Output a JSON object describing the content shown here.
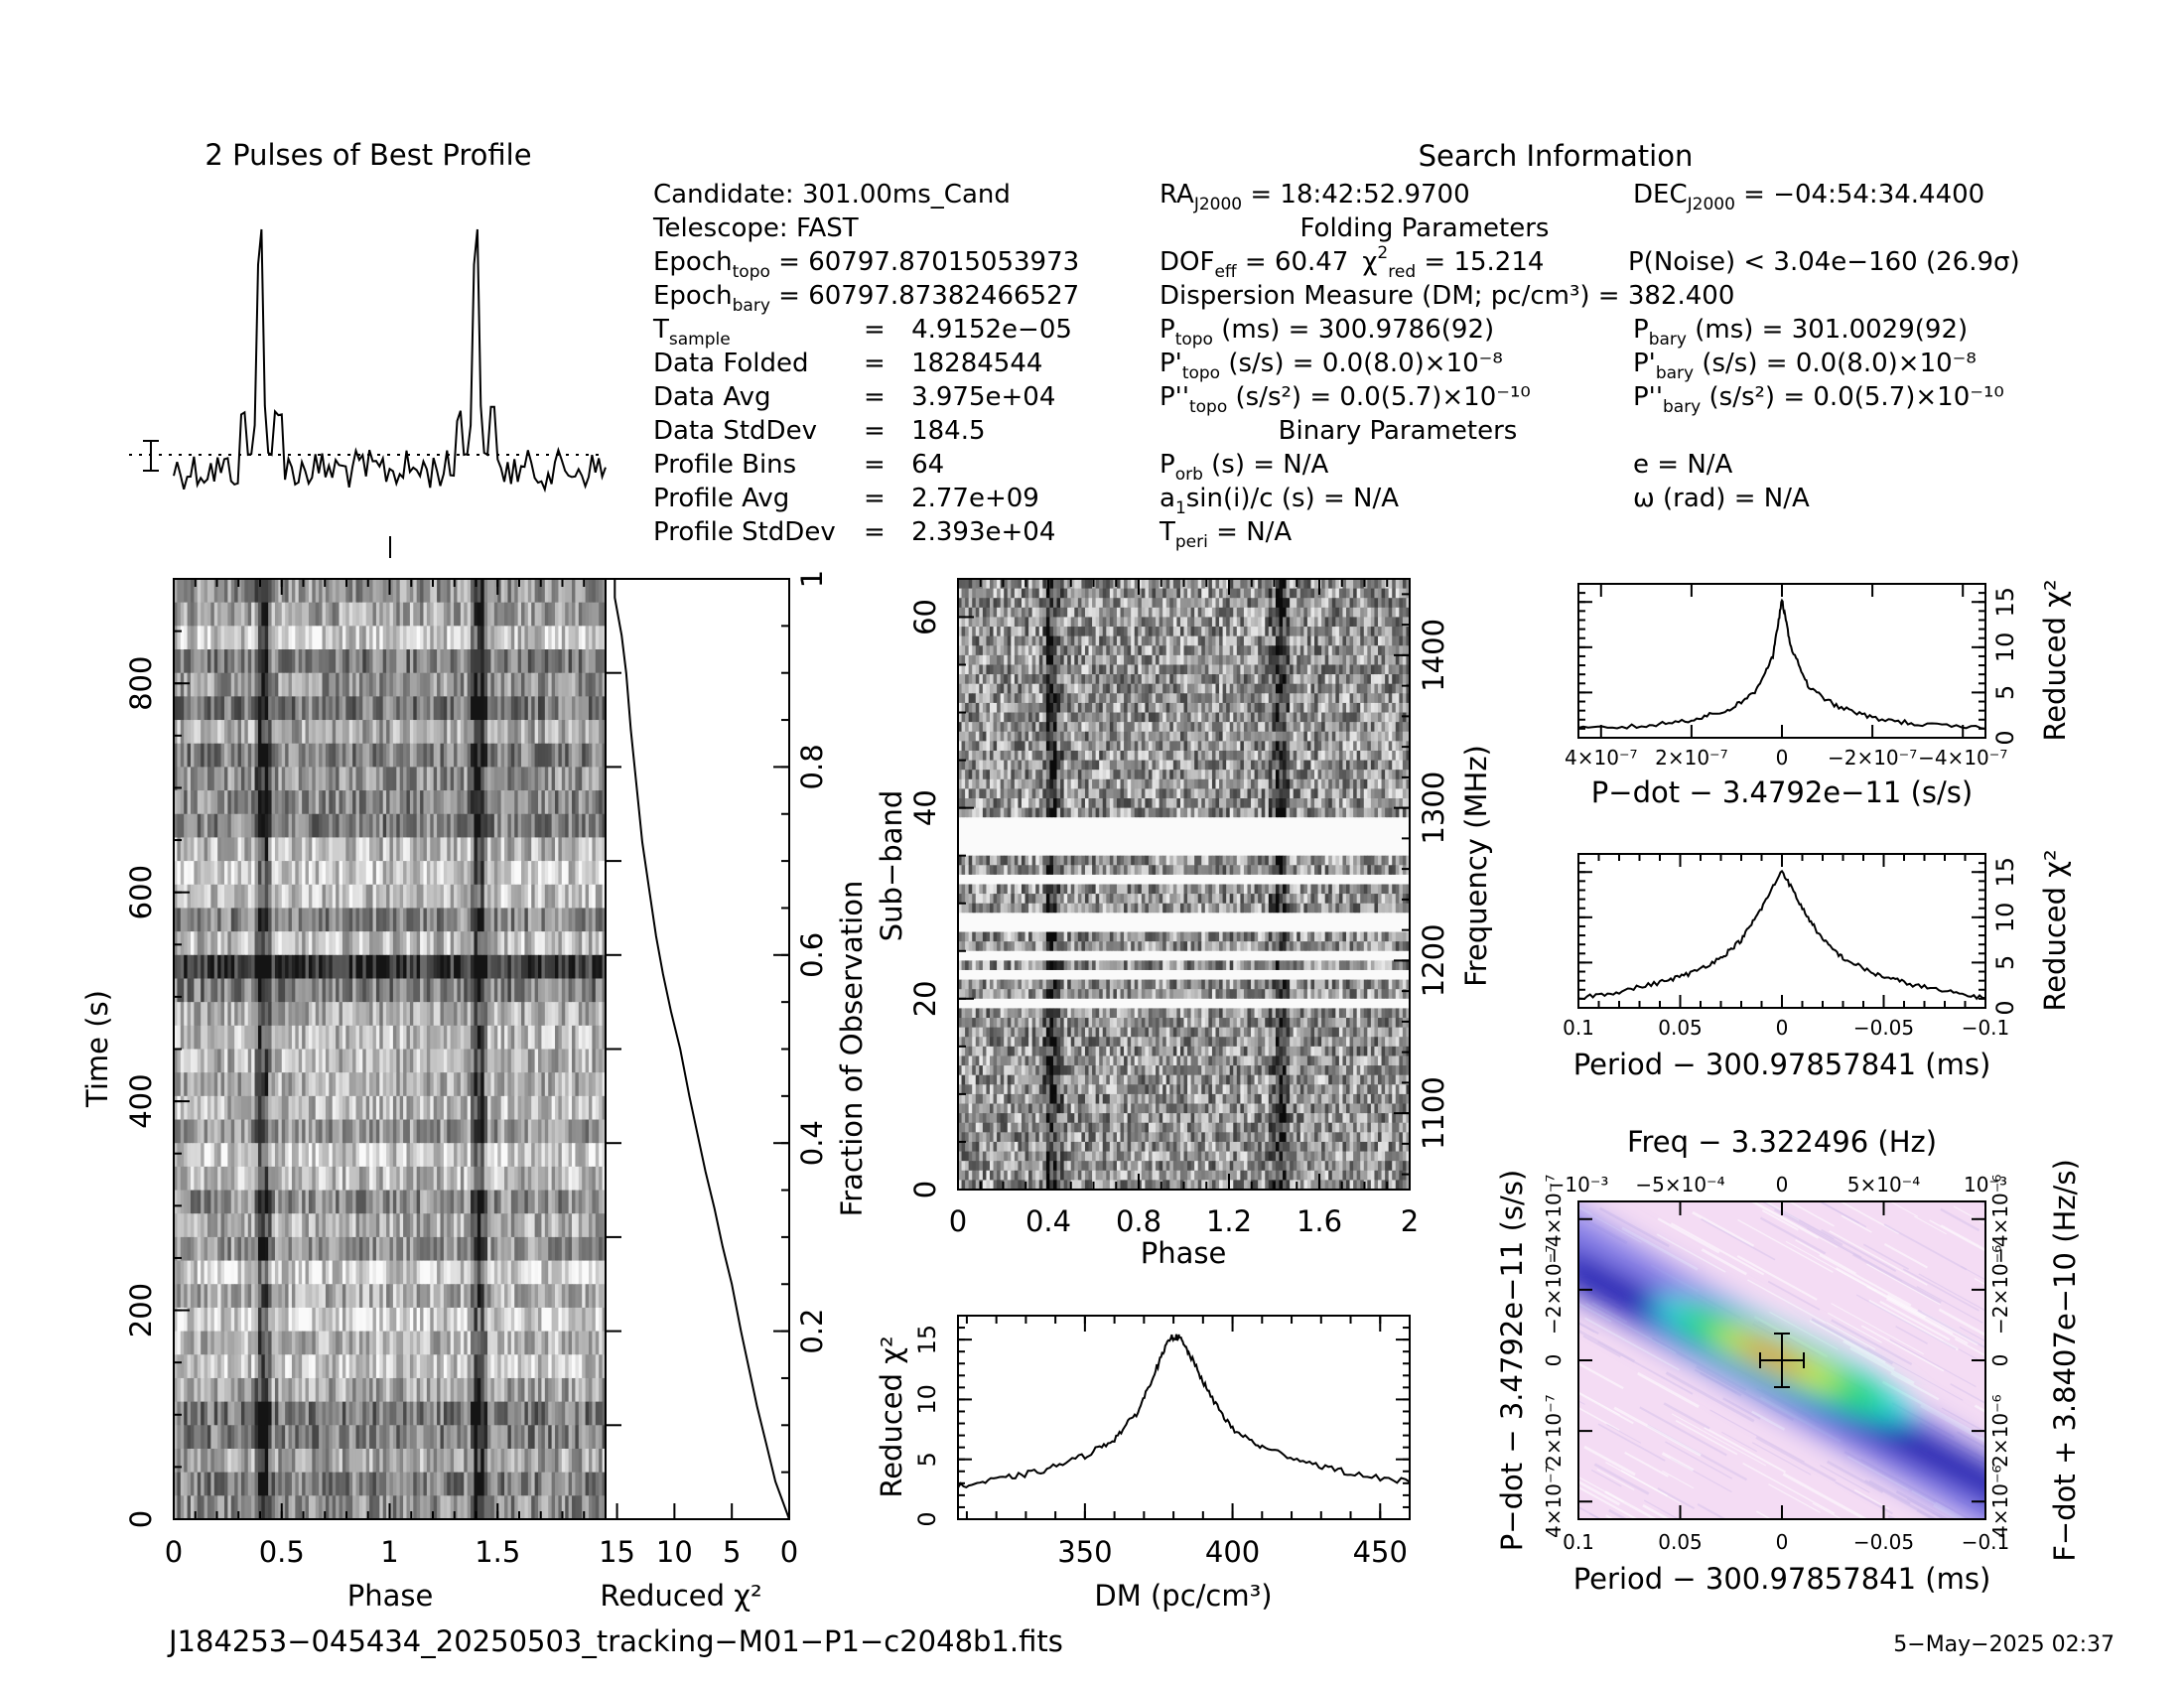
{
  "profile": {
    "title": "2 Pulses of Best Profile"
  },
  "search": {
    "title": "Search Information",
    "candidate": "Candidate:  301.00ms_Cand",
    "telescope": "Telescope:  FAST",
    "epoch_topo": "60797.87015053973",
    "epoch_bary": "60797.87382466527",
    "t_sample": "4.9152e−05",
    "data_folded": "18284544",
    "data_avg": "3.975e+04",
    "data_stddev": "184.5",
    "profile_bins": "64",
    "profile_avg": "2.77e+09",
    "profile_stddev": "2.393e+04",
    "ra": "18:42:52.9700",
    "dec": "−04:54:34.4400"
  },
  "folding": {
    "title": "Folding Parameters",
    "dof_eff": "60.47",
    "chi2_red": "15.214",
    "p_noise": "P(Noise) < 3.04e−160   (26.9σ)",
    "dm_line": "Dispersion Measure (DM; pc/cm³) = 382.400",
    "p_topo": "300.9786(92)",
    "p_bary": "301.0029(92)",
    "pd_topo": "0.0(8.0)×10⁻⁸",
    "pd_bary": "0.0(8.0)×10⁻⁸",
    "pdd_topo": "0.0(5.7)×10⁻¹⁰",
    "pdd_bary": "0.0(5.7)×10⁻¹⁰"
  },
  "binary": {
    "title": "Binary Parameters",
    "p_orb": "N/A",
    "a1sini": "N/A",
    "t_peri": "N/A",
    "e": "N/A",
    "omega": "N/A"
  },
  "labels": {
    "time_y": "Time  (s)",
    "phase_x": "Phase",
    "redchi_x": "Reduced χ²",
    "frac_y": "Fraction of Observation",
    "subband_y": "Sub−band",
    "freq_y": "Frequency (MHz)",
    "phase2_x": "Phase",
    "dm_x": "DM (pc/cm³)",
    "dm_y": "Reduced χ²",
    "pdot_x": "P−dot − 3.4792e−11 (s/s)",
    "pdot_y": "Reduced χ²",
    "period_x": "Period − 300.97857841 (ms)",
    "period_y": "Reduced χ²",
    "freq_top": "Freq − 3.322496 (Hz)",
    "pp_x": "Period − 300.97857841 (ms)",
    "pp_yl": "P−dot − 3.4792e−11 (s/s)",
    "pp_yr": "F−dot + 3.8407e−10 (Hz/s)"
  },
  "footer": {
    "filename": "J184253−045434_20250503_tracking−M01−P1−c2048b1.fits",
    "date": "5−May−2025 02:37"
  },
  "chart_data": [
    {
      "type": "line",
      "name": "profile",
      "xlim": [
        0,
        2
      ],
      "note": "Pulse peak at phase ~0.40 and ~1.40"
    },
    {
      "type": "heatmap",
      "name": "time-phase",
      "xlabel": "Phase",
      "ylabel": "Time  (s)",
      "xlim": [
        0,
        2
      ],
      "ylim": [
        0,
        900
      ],
      "xticks": [
        0,
        0.5,
        1,
        1.5
      ],
      "yticks": [
        0,
        200,
        400,
        600,
        800
      ]
    },
    {
      "type": "line",
      "name": "reduced-chi2-vs-time",
      "xlabel": "Reduced χ²",
      "ylabel": "Fraction of Observation",
      "xlim": [
        16,
        0
      ],
      "ylim": [
        0,
        1
      ],
      "xticks": [
        15,
        10,
        5,
        0
      ],
      "yticks": [
        0.2,
        0.4,
        0.6,
        0.8,
        1
      ],
      "x": [
        0,
        0.6,
        1.2,
        2.0,
        2.8,
        3.5,
        4.2,
        5,
        5.8,
        6.5,
        7.3,
        8,
        8.7,
        9.5,
        10.3,
        11,
        11.6,
        12.2,
        12.8,
        13.3,
        13.8,
        14.2,
        14.6,
        15.2,
        15.2
      ],
      "y": [
        0,
        0.02,
        0.04,
        0.08,
        0.12,
        0.16,
        0.2,
        0.25,
        0.29,
        0.33,
        0.37,
        0.41,
        0.45,
        0.5,
        0.54,
        0.58,
        0.62,
        0.67,
        0.72,
        0.78,
        0.84,
        0.9,
        0.94,
        0.98,
        1.0
      ]
    },
    {
      "type": "heatmap",
      "name": "subband-phase",
      "xlabel": "Phase",
      "ylabel": "Sub−band",
      "xlim": [
        0,
        2
      ],
      "ylim": [
        0,
        64
      ],
      "xticks": [
        0,
        0.4,
        0.8,
        1.2,
        1.6,
        2
      ],
      "yticks": [
        0,
        20,
        40,
        60
      ],
      "freq_ticks": [
        1100,
        1200,
        1300,
        1400
      ],
      "freq_range": [
        1050,
        1450
      ]
    },
    {
      "type": "line",
      "name": "dm-curve",
      "xlabel": "DM (pc/cm³)",
      "ylabel": "Reduced χ²",
      "xlim": [
        307,
        460
      ],
      "ylim": [
        0,
        17
      ],
      "xticks": [
        350,
        400,
        450
      ],
      "yticks": [
        0,
        5,
        10,
        15
      ],
      "x": [
        307,
        320,
        335,
        350,
        360,
        368,
        374,
        379,
        382,
        386,
        392,
        400,
        410,
        425,
        440,
        460
      ],
      "y": [
        2.7,
        3.3,
        4.0,
        5.3,
        6.7,
        9,
        12.5,
        15.2,
        15.2,
        13.5,
        10.5,
        7.5,
        6.0,
        4.8,
        3.8,
        3.1
      ]
    },
    {
      "type": "line",
      "name": "pdot-curve",
      "xlabel": "P−dot − 3.4792e−11 (s/s)",
      "ylabel": "Reduced χ²",
      "xlim": [
        4.5e-07,
        -4.5e-07
      ],
      "ylim": [
        0,
        17
      ],
      "xticks": [
        "4×10⁻⁷",
        "2×10⁻⁷",
        "0",
        "−2×10⁻⁷",
        "−4×10⁻⁷"
      ],
      "yticks": [
        0,
        5,
        10,
        15
      ],
      "x": [
        4.5e-07,
        3e-07,
        2e-07,
        1.2e-07,
        6e-08,
        2e-08,
        0,
        -2e-08,
        -6e-08,
        -1.2e-07,
        -2e-07,
        -3e-07,
        -4.5e-07
      ],
      "y": [
        1,
        1.3,
        2,
        3,
        5,
        9,
        15.2,
        10,
        5.5,
        3.5,
        2.2,
        1.5,
        1
      ]
    },
    {
      "type": "line",
      "name": "period-curve",
      "xlabel": "Period − 300.97857841 (ms)",
      "ylabel": "Reduced χ²",
      "xlim": [
        0.1,
        -0.1
      ],
      "ylim": [
        0,
        17
      ],
      "xticks": [
        "0.1",
        "0.05",
        "0",
        "−0.05",
        "−0.1"
      ],
      "yticks": [
        0,
        5,
        10,
        15
      ],
      "x": [
        0.1,
        0.08,
        0.06,
        0.045,
        0.03,
        0.02,
        0.01,
        0,
        -0.01,
        -0.02,
        -0.03,
        -0.045,
        -0.06,
        -0.08,
        -0.1
      ],
      "y": [
        1.1,
        1.8,
        2.8,
        3.8,
        5.5,
        7.5,
        11,
        15.2,
        11,
        7.5,
        5.5,
        3.8,
        2.8,
        1.8,
        1.1
      ]
    },
    {
      "type": "heatmap",
      "name": "period-pdot",
      "xlabel": "Period − 300.97857841 (ms)",
      "ylabel": "P−dot − 3.4792e−11 (s/s)",
      "xlim": [
        0.1,
        -0.1
      ],
      "ylim": [
        -4.5e-07,
        4.5e-07
      ],
      "xticks": [
        "0.1",
        "0.05",
        "0",
        "−0.05",
        "−0.1"
      ],
      "yticks": [
        "−4×10⁻⁷",
        "−2×10⁻⁷",
        "0",
        "2×10⁻⁷",
        "4×10⁻⁷"
      ],
      "top_ticks": [
        "−10⁻³",
        "−5×10⁻⁴",
        "0",
        "5×10⁻⁴",
        "10⁻³"
      ],
      "right_ticks": [
        "−4×10⁻⁶",
        "−2×10⁻⁶",
        "0",
        "2×10⁻⁶",
        "4×10⁻⁶"
      ]
    }
  ]
}
